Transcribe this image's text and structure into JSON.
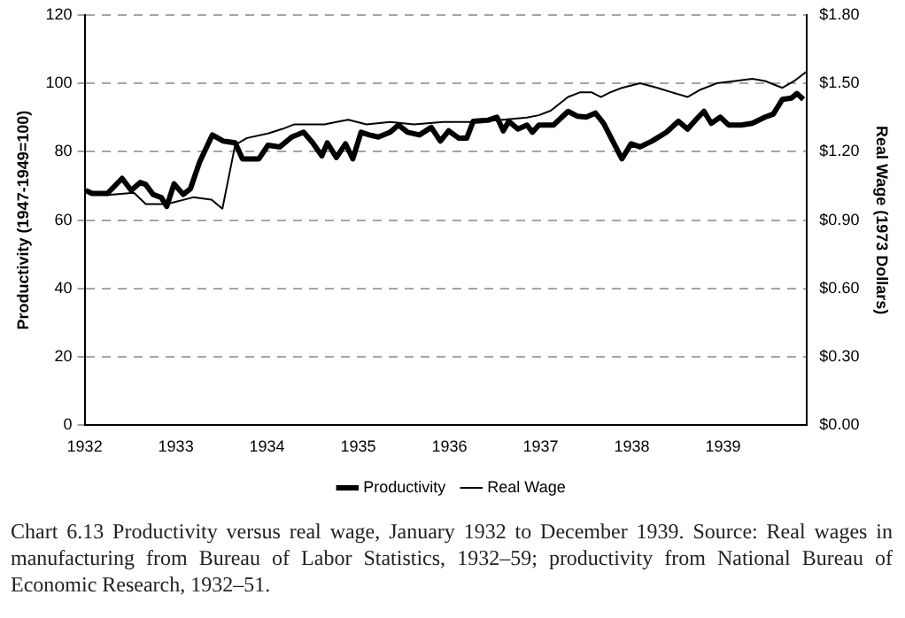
{
  "chart_data": {
    "type": "line",
    "xlabel": null,
    "ylabel": "Productivity (1947-1949=100)",
    "y2label": "Real Wage (1973 Dollars)",
    "xlim": [
      1932,
      1939.92
    ],
    "xticks": [
      1932,
      1933,
      1934,
      1935,
      1936,
      1937,
      1938,
      1939
    ],
    "ylim": [
      0,
      120
    ],
    "yticks": [
      0,
      20,
      40,
      60,
      80,
      100,
      120
    ],
    "y2lim": [
      0,
      1.8
    ],
    "y2ticks": [
      {
        "value": 0,
        "label": "$0.00"
      },
      {
        "value": 0.3,
        "label": "$0.30"
      },
      {
        "value": 0.6,
        "label": "$0.60"
      },
      {
        "value": 0.9,
        "label": "$0.90"
      },
      {
        "value": 1.2,
        "label": "$1.20"
      },
      {
        "value": 1.5,
        "label": "$1.50"
      },
      {
        "value": 1.8,
        "label": "$1.80"
      }
    ],
    "grid": "y",
    "legend": "bottom",
    "marker": "none",
    "line_style": "solid",
    "series": [
      {
        "name": "Productivity",
        "color": "#000000",
        "x": [
          1932.01,
          1932.08,
          1932.25,
          1932.41,
          1932.51,
          1932.61,
          1932.67,
          1932.75,
          1932.84,
          1932.9,
          1932.98,
          1933.08,
          1933.16,
          1933.26,
          1933.4,
          1933.52,
          1933.65,
          1933.73,
          1933.91,
          1934.01,
          1934.14,
          1934.27,
          1934.4,
          1934.5,
          1934.6,
          1934.66,
          1934.76,
          1934.86,
          1934.94,
          1935.03,
          1935.12,
          1935.22,
          1935.35,
          1935.44,
          1935.54,
          1935.67,
          1935.8,
          1935.9,
          1935.99,
          1936.1,
          1936.19,
          1936.26,
          1936.42,
          1936.52,
          1936.59,
          1936.65,
          1936.75,
          1936.85,
          1936.91,
          1936.98,
          1937.14,
          1937.3,
          1937.4,
          1937.5,
          1937.6,
          1937.69,
          1937.79,
          1937.89,
          1937.99,
          1938.09,
          1938.22,
          1938.38,
          1938.51,
          1938.61,
          1938.71,
          1938.79,
          1938.87,
          1938.97,
          1939.06,
          1939.2,
          1939.32,
          1939.46,
          1939.55,
          1939.65,
          1939.75,
          1939.81,
          1939.88
        ],
        "values": [
          68.7,
          67.8,
          67.8,
          72.2,
          68.7,
          71.0,
          70.4,
          67.5,
          66.6,
          64.0,
          70.6,
          67.5,
          69.2,
          77.0,
          84.9,
          83.1,
          82.6,
          77.9,
          77.9,
          81.9,
          81.4,
          84.3,
          85.7,
          82.6,
          78.8,
          82.6,
          78.3,
          82.3,
          77.9,
          85.7,
          84.9,
          84.3,
          85.7,
          87.8,
          85.7,
          84.9,
          87.1,
          83.1,
          86.1,
          84.0,
          84.0,
          88.9,
          89.2,
          90.1,
          86.1,
          88.9,
          86.6,
          87.8,
          85.7,
          87.8,
          87.8,
          91.8,
          90.4,
          90.1,
          91.3,
          88.3,
          83.1,
          77.9,
          82.3,
          81.4,
          83.1,
          85.7,
          88.9,
          86.6,
          89.6,
          91.8,
          88.3,
          90.1,
          87.8,
          87.8,
          88.3,
          90.1,
          91.0,
          95.3,
          95.7,
          97.0,
          95.3
        ]
      },
      {
        "name": "Real Wage",
        "color": "#000000",
        "axis": "y2",
        "x": [
          1932.01,
          1932.25,
          1932.54,
          1932.67,
          1932.9,
          1933.19,
          1933.39,
          1933.51,
          1933.65,
          1933.78,
          1934.01,
          1934.17,
          1934.3,
          1934.47,
          1934.63,
          1934.76,
          1934.89,
          1935.09,
          1935.35,
          1935.61,
          1935.93,
          1936.26,
          1936.59,
          1936.85,
          1936.98,
          1937.11,
          1937.3,
          1937.43,
          1937.56,
          1937.66,
          1937.76,
          1937.89,
          1938.09,
          1938.28,
          1938.44,
          1938.61,
          1938.74,
          1938.93,
          1939.13,
          1939.32,
          1939.46,
          1939.65,
          1939.78,
          1939.91
        ],
        "values": [
          1.03,
          1.01,
          1.02,
          0.97,
          0.97,
          1.0,
          0.99,
          0.95,
          1.23,
          1.26,
          1.28,
          1.3,
          1.32,
          1.32,
          1.32,
          1.33,
          1.34,
          1.32,
          1.33,
          1.32,
          1.33,
          1.33,
          1.34,
          1.35,
          1.36,
          1.38,
          1.44,
          1.46,
          1.46,
          1.44,
          1.46,
          1.48,
          1.5,
          1.48,
          1.46,
          1.44,
          1.47,
          1.5,
          1.51,
          1.52,
          1.51,
          1.48,
          1.51,
          1.55
        ]
      }
    ],
    "annotations": [
      "Chart 6.13 Productivity versus real wage, January 1932 to December 1939. Source: Real wages in manufacturing from Bureau of Labor Statistics, 1932–59; productivity from National Bureau of Economic Research, 1932–51."
    ]
  }
}
